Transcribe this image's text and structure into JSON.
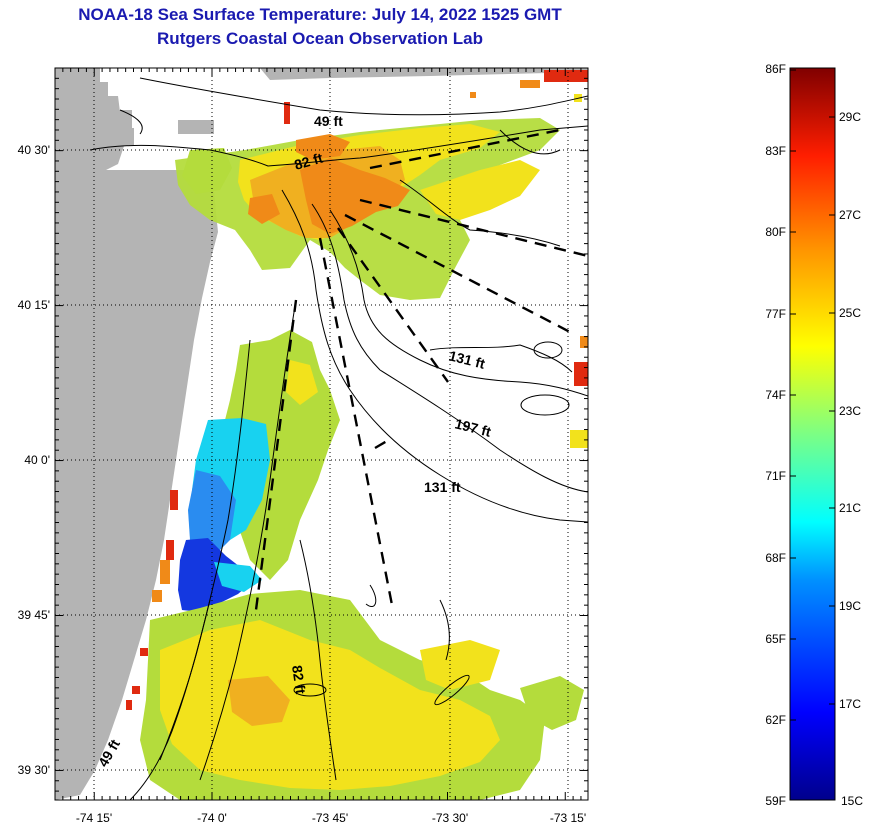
{
  "title_line1": "NOAA-18 Sea Surface Temperature:  July 14, 2022 1525 GMT",
  "title_line2": "Rutgers Coastal Ocean Observation Lab",
  "colors": {
    "land": "#b4b4b4",
    "title": "#1a1ab0",
    "warm": "#f08a18",
    "yellow": "#f2e21c",
    "green": "#b4dc3c",
    "cyan": "#18d2f0",
    "blue": "#1438e0",
    "red": "#e02a10"
  },
  "map": {
    "lat_labels": [
      "40 30'",
      "40 15'",
      "40 0'",
      "39 45'",
      "39 30'"
    ],
    "lon_labels": [
      "-74 15'",
      "-74 0'",
      "-73 45'",
      "-73 30'",
      "-73 15'"
    ],
    "contour_labels": [
      "49 ft",
      "82 ft",
      "131 ft",
      "197 ft",
      "131 ft",
      "82 ft",
      "49 ft"
    ]
  },
  "colorbar": {
    "fahrenheit_labels": [
      "86F",
      "83F",
      "80F",
      "77F",
      "74F",
      "71F",
      "68F",
      "65F",
      "62F",
      "59F"
    ],
    "celsius_labels": [
      "29C",
      "27C",
      "25C",
      "23C",
      "21C",
      "19C",
      "17C",
      "15C"
    ]
  }
}
